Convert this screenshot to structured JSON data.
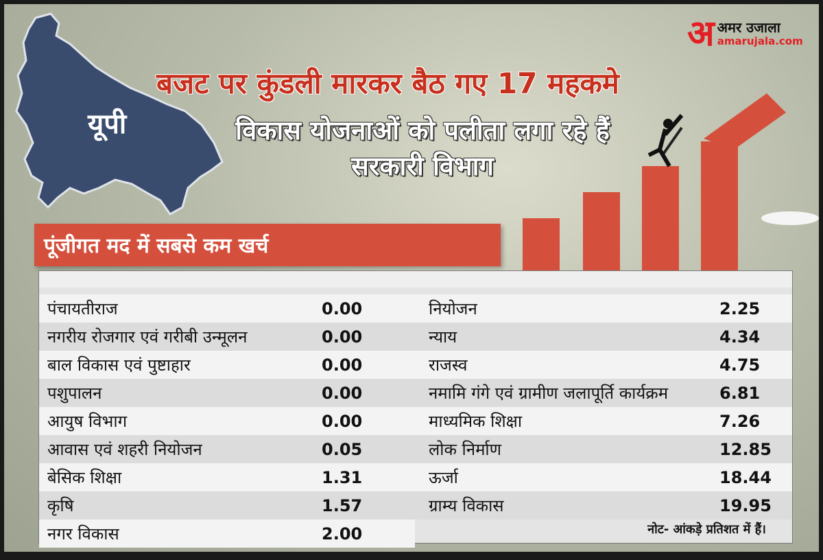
{
  "logo": {
    "mark": "अ",
    "hindi": "अमर उजाला",
    "url": "amarujala.com"
  },
  "map": {
    "label": "यूपी"
  },
  "headline": "बजट पर कुंडली मारकर बैठ गए 17 महकमे",
  "subheadline": "विकास योजनाओं को पलीता लगा रहे हैं सरकारी विभाग",
  "section_title": "पूंजीगत मद में सबसे कम खर्च",
  "colors": {
    "accent": "#d5503c",
    "headline": "#c8301e",
    "map": "#3a4c6e"
  },
  "table": {
    "left": [
      {
        "label": "पंचायतीराज",
        "value": "0.00"
      },
      {
        "label": "नगरीय रोजगार एवं गरीबी उन्मूलन",
        "value": "0.00"
      },
      {
        "label": "बाल विकास एवं पुष्टाहार",
        "value": "0.00"
      },
      {
        "label": "पशुपालन",
        "value": "0.00"
      },
      {
        "label": "आयुष विभाग",
        "value": "0.00"
      },
      {
        "label": "आवास एवं शहरी नियोजन",
        "value": "0.05"
      },
      {
        "label": "बेसिक शिक्षा",
        "value": "1.31"
      },
      {
        "label": "कृषि",
        "value": "1.57"
      },
      {
        "label": "नगर विकास",
        "value": "2.00"
      }
    ],
    "right": [
      {
        "label": "नियोजन",
        "value": "2.25"
      },
      {
        "label": "न्याय",
        "value": "4.34"
      },
      {
        "label": "राजस्व",
        "value": "4.75"
      },
      {
        "label": "नमामि गंगे एवं ग्रामीण जलापूर्ति कार्यक्रम",
        "value": "6.81"
      },
      {
        "label": "माध्यमिक शिक्षा",
        "value": "7.26"
      },
      {
        "label": "लोक निर्माण",
        "value": "12.85"
      },
      {
        "label": "ऊर्जा",
        "value": "18.44"
      },
      {
        "label": "ग्राम्य विकास",
        "value": "19.95"
      }
    ]
  },
  "note": "नोट- आंकड़े प्रतिशत में हैं।"
}
